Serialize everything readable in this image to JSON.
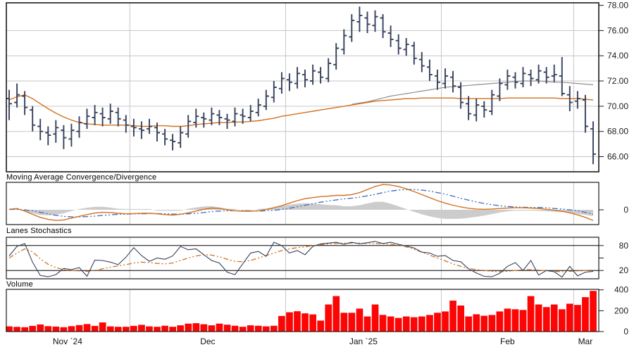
{
  "pane_titles": {
    "macd": "Moving Average Convergence/Divergence",
    "stochastics": "Lanes Stochastics",
    "volume": "Volume"
  },
  "colors": {
    "ohlc_bar": "#36415c",
    "ma_fast": "#d2711e",
    "ma_slow": "#8f8f8f",
    "macd_line": "#d2711e",
    "macd_signal": "#3c6cc0",
    "macd_histogram": "#cccccc",
    "stoch_k": "#36415c",
    "stoch_d": "#d2711e",
    "volume_bar": "#fb0505",
    "grid": "#c6c6c6",
    "border": "#1a1a1a",
    "text": "#1b1b1b",
    "background": "#ffffff"
  },
  "x_axis": {
    "months": [
      {
        "label": "Nov `24",
        "start_index": 0
      },
      {
        "label": "Dec",
        "start_index": 16
      },
      {
        "label": "Jan `25",
        "start_index": 36
      },
      {
        "label": "Feb",
        "start_index": 56
      },
      {
        "label": "Mar",
        "start_index": 73
      }
    ],
    "unit": "trading-day bars"
  },
  "chart_data": [
    {
      "type": "ohlc",
      "panel": "price",
      "title": "",
      "ylim": [
        64.8,
        78.2
      ],
      "yticks": [
        78,
        76,
        74,
        72,
        70,
        68,
        66
      ],
      "ytick_labels": [
        "78.00",
        "76.00",
        "74.00",
        "72.00",
        "70.00",
        "68.00",
        "66.00"
      ],
      "grid": true,
      "ohlc": [
        [
          70.6,
          71.3,
          68.9,
          70.2
        ],
        [
          70.3,
          71.8,
          69.9,
          70.9
        ],
        [
          70.8,
          71.2,
          69.3,
          69.9
        ],
        [
          69.7,
          70.0,
          68.0,
          68.5
        ],
        [
          68.4,
          69.0,
          67.3,
          68.0
        ],
        [
          67.9,
          68.4,
          66.9,
          67.7
        ],
        [
          67.8,
          68.9,
          67.1,
          68.3
        ],
        [
          68.1,
          68.5,
          66.6,
          67.5
        ],
        [
          67.4,
          68.6,
          66.8,
          68.1
        ],
        [
          68.0,
          69.2,
          67.5,
          68.7
        ],
        [
          68.6,
          69.8,
          68.2,
          69.2
        ],
        [
          69.1,
          70.1,
          68.5,
          69.5
        ],
        [
          69.4,
          69.9,
          68.4,
          69.1
        ],
        [
          69.0,
          70.2,
          68.6,
          69.6
        ],
        [
          69.5,
          69.9,
          68.4,
          69.0
        ],
        [
          68.9,
          69.3,
          67.9,
          68.5
        ],
        [
          68.4,
          69.0,
          67.6,
          68.3
        ],
        [
          68.2,
          68.8,
          67.4,
          68.1
        ],
        [
          68.2,
          69.0,
          67.8,
          68.4
        ],
        [
          68.3,
          68.7,
          67.2,
          67.9
        ],
        [
          67.8,
          68.2,
          66.9,
          67.4
        ],
        [
          67.3,
          67.8,
          66.5,
          67.2
        ],
        [
          67.1,
          68.4,
          66.7,
          67.9
        ],
        [
          67.8,
          69.3,
          67.5,
          68.8
        ],
        [
          68.7,
          69.8,
          68.3,
          69.2
        ],
        [
          69.1,
          69.5,
          68.3,
          69.0
        ],
        [
          68.9,
          69.9,
          68.5,
          69.4
        ],
        [
          69.3,
          69.7,
          68.5,
          69.1
        ],
        [
          69.0,
          69.4,
          68.2,
          68.9
        ],
        [
          68.8,
          69.9,
          68.4,
          69.4
        ],
        [
          69.3,
          69.8,
          68.6,
          69.2
        ],
        [
          69.1,
          70.1,
          68.8,
          69.6
        ],
        [
          69.5,
          70.6,
          69.2,
          70.1
        ],
        [
          70.0,
          71.3,
          69.7,
          70.8
        ],
        [
          70.7,
          72.0,
          70.3,
          71.5
        ],
        [
          71.4,
          72.7,
          71.0,
          72.2
        ],
        [
          72.1,
          72.6,
          71.2,
          71.9
        ],
        [
          71.8,
          73.1,
          71.4,
          72.6
        ],
        [
          72.5,
          72.9,
          71.5,
          72.1
        ],
        [
          72.0,
          73.3,
          71.7,
          72.8
        ],
        [
          72.7,
          73.1,
          71.8,
          72.3
        ],
        [
          72.2,
          73.8,
          71.9,
          73.4
        ],
        [
          73.3,
          75.0,
          72.9,
          74.6
        ],
        [
          74.5,
          76.1,
          74.1,
          75.6
        ],
        [
          75.5,
          77.3,
          75.1,
          76.8
        ],
        [
          76.7,
          77.9,
          75.9,
          77.2
        ],
        [
          77.0,
          77.5,
          75.8,
          76.5
        ],
        [
          76.4,
          77.6,
          75.9,
          77.1
        ],
        [
          77.0,
          77.3,
          75.4,
          75.9
        ],
        [
          75.8,
          76.4,
          74.7,
          75.3
        ],
        [
          75.2,
          75.7,
          74.1,
          74.6
        ],
        [
          74.5,
          75.4,
          74.0,
          74.9
        ],
        [
          74.8,
          75.1,
          73.3,
          73.8
        ],
        [
          73.7,
          74.3,
          72.7,
          73.2
        ],
        [
          73.1,
          73.7,
          72.0,
          72.5
        ],
        [
          72.4,
          72.9,
          71.3,
          71.9
        ],
        [
          71.8,
          73.0,
          71.4,
          72.4
        ],
        [
          72.3,
          72.8,
          71.1,
          71.6
        ],
        [
          71.5,
          71.9,
          69.8,
          70.3
        ],
        [
          70.2,
          70.8,
          68.9,
          69.4
        ],
        [
          69.3,
          70.6,
          68.8,
          70.1
        ],
        [
          70.0,
          70.4,
          69.1,
          69.7
        ],
        [
          69.6,
          71.3,
          69.3,
          70.9
        ],
        [
          70.8,
          72.2,
          70.4,
          71.8
        ],
        [
          71.7,
          72.9,
          71.3,
          72.4
        ],
        [
          72.3,
          72.7,
          71.4,
          71.9
        ],
        [
          71.8,
          73.1,
          71.5,
          72.6
        ],
        [
          72.5,
          72.9,
          71.6,
          72.2
        ],
        [
          72.1,
          73.3,
          71.8,
          72.8
        ],
        [
          72.7,
          73.1,
          71.8,
          72.3
        ],
        [
          72.4,
          73.3,
          71.9,
          72.5
        ],
        [
          72.4,
          73.9,
          70.8,
          71.0
        ],
        [
          70.9,
          71.6,
          69.6,
          70.3
        ],
        [
          70.4,
          71.2,
          69.8,
          70.6
        ],
        [
          70.5,
          70.9,
          67.9,
          68.4
        ],
        [
          68.2,
          68.8,
          65.4,
          66.2
        ]
      ],
      "series": [
        {
          "name": "moving-average-fast",
          "style": "solid-orange",
          "values": [
            70.5,
            70.75,
            70.9,
            70.6,
            70.2,
            69.8,
            69.45,
            69.15,
            68.9,
            68.7,
            68.6,
            68.55,
            68.5,
            68.5,
            68.5,
            68.5,
            68.45,
            68.4,
            68.4,
            68.45,
            68.45,
            68.4,
            68.4,
            68.45,
            68.55,
            68.6,
            68.65,
            68.7,
            68.7,
            68.75,
            68.75,
            68.8,
            68.85,
            68.95,
            69.05,
            69.2,
            69.3,
            69.4,
            69.5,
            69.6,
            69.7,
            69.8,
            69.9,
            70.0,
            70.1,
            70.2,
            70.3,
            70.4,
            70.45,
            70.5,
            70.55,
            70.6,
            70.6,
            70.65,
            70.65,
            70.65,
            70.65,
            70.65,
            70.6,
            70.6,
            70.6,
            70.6,
            70.6,
            70.6,
            70.65,
            70.65,
            70.65,
            70.65,
            70.65,
            70.65,
            70.65,
            70.6,
            70.6,
            70.6,
            70.55,
            70.5
          ]
        },
        {
          "name": "moving-average-slow",
          "style": "solid-gray",
          "values": [
            null,
            null,
            null,
            null,
            null,
            null,
            null,
            null,
            null,
            null,
            null,
            null,
            null,
            null,
            null,
            null,
            null,
            null,
            null,
            null,
            null,
            null,
            null,
            null,
            null,
            null,
            null,
            null,
            null,
            null,
            null,
            null,
            null,
            null,
            null,
            null,
            null,
            null,
            null,
            null,
            null,
            null,
            null,
            null,
            70.15,
            70.25,
            70.35,
            70.5,
            70.65,
            70.8,
            70.9,
            71.0,
            71.1,
            71.2,
            71.3,
            71.4,
            71.5,
            71.55,
            71.6,
            71.65,
            71.7,
            71.75,
            71.8,
            71.85,
            71.9,
            71.95,
            72.0,
            72.0,
            72.0,
            71.95,
            71.9,
            71.9,
            71.85,
            71.8,
            71.75,
            71.7
          ]
        }
      ]
    },
    {
      "type": "line",
      "panel": "macd",
      "title": "Moving Average Convergence/Divergence",
      "ylim": [
        -0.585,
        1.085
      ],
      "yticks": [
        0
      ],
      "ytick_labels": [
        "0"
      ],
      "histogram_is_macd_minus_signal": true,
      "series": [
        {
          "name": "macd-line",
          "style": "solid-orange",
          "values": [
            0.02,
            0.05,
            -0.05,
            -0.18,
            -0.3,
            -0.38,
            -0.42,
            -0.4,
            -0.33,
            -0.26,
            -0.19,
            -0.13,
            -0.1,
            -0.11,
            -0.14,
            -0.16,
            -0.15,
            -0.14,
            -0.14,
            -0.16,
            -0.19,
            -0.21,
            -0.18,
            -0.12,
            -0.05,
            0.02,
            0.07,
            0.05,
            0.0,
            -0.04,
            -0.06,
            -0.06,
            -0.04,
            0.01,
            0.08,
            0.16,
            0.26,
            0.36,
            0.44,
            0.48,
            0.52,
            0.54,
            0.57,
            0.57,
            0.6,
            0.68,
            0.8,
            0.92,
            1.0,
            0.98,
            0.92,
            0.83,
            0.72,
            0.6,
            0.48,
            0.36,
            0.26,
            0.18,
            0.11,
            0.06,
            0.03,
            0.02,
            0.03,
            0.05,
            0.07,
            0.08,
            0.08,
            0.07,
            0.05,
            0.02,
            -0.02,
            -0.06,
            -0.12,
            -0.2,
            -0.3,
            -0.42
          ]
        },
        {
          "name": "macd-signal-line",
          "style": "dash-dot-blue",
          "values": [
            0.01,
            0.02,
            0.0,
            -0.04,
            -0.1,
            -0.16,
            -0.22,
            -0.26,
            -0.28,
            -0.28,
            -0.27,
            -0.25,
            -0.22,
            -0.2,
            -0.18,
            -0.17,
            -0.16,
            -0.16,
            -0.15,
            -0.15,
            -0.16,
            -0.17,
            -0.17,
            -0.16,
            -0.14,
            -0.11,
            -0.07,
            -0.05,
            -0.04,
            -0.04,
            -0.04,
            -0.05,
            -0.05,
            -0.04,
            -0.02,
            0.01,
            0.06,
            0.12,
            0.18,
            0.24,
            0.3,
            0.35,
            0.39,
            0.43,
            0.46,
            0.5,
            0.55,
            0.61,
            0.68,
            0.74,
            0.78,
            0.8,
            0.8,
            0.78,
            0.74,
            0.68,
            0.62,
            0.54,
            0.46,
            0.38,
            0.31,
            0.25,
            0.2,
            0.16,
            0.13,
            0.11,
            0.1,
            0.09,
            0.09,
            0.08,
            0.05,
            0.03,
            0.0,
            -0.04,
            -0.1,
            -0.17
          ]
        }
      ]
    },
    {
      "type": "line",
      "panel": "stochastics",
      "title": "Lanes Stochastics",
      "ylim": [
        0,
        100
      ],
      "ref_lines": [
        80,
        20
      ],
      "yticks": [
        80,
        50,
        20
      ],
      "ytick_labels": [
        "80",
        "",
        "20"
      ],
      "series": [
        {
          "name": "stochastic-k",
          "style": "solid-navy",
          "values": [
            55,
            78,
            85,
            40,
            8,
            5,
            10,
            25,
            22,
            27,
            6,
            45,
            44,
            40,
            34,
            52,
            75,
            56,
            42,
            50,
            47,
            55,
            78,
            70,
            72,
            58,
            44,
            38,
            16,
            10,
            36,
            62,
            66,
            54,
            88,
            80,
            62,
            68,
            58,
            78,
            84,
            86,
            88,
            83,
            88,
            84,
            87,
            90,
            85,
            88,
            83,
            79,
            74,
            64,
            62,
            54,
            56,
            44,
            41,
            24,
            14,
            6,
            5,
            13,
            30,
            39,
            20,
            44,
            9,
            20,
            17,
            4,
            30,
            7,
            16,
            18
          ]
        },
        {
          "name": "stochastic-d",
          "style": "dash-dot-orange",
          "values": [
            50,
            62,
            72,
            65,
            48,
            35,
            27,
            22,
            20,
            19,
            18,
            20,
            24,
            28,
            31,
            34,
            38,
            40,
            39,
            37,
            36,
            38,
            44,
            50,
            55,
            58,
            57,
            53,
            47,
            42,
            41,
            44,
            50,
            56,
            62,
            68,
            72,
            75,
            77,
            80,
            82,
            84,
            85,
            86,
            86,
            86,
            85,
            85,
            84,
            83,
            81,
            77,
            71,
            64,
            57,
            50,
            43,
            36,
            30,
            25,
            22,
            20,
            18,
            17,
            18,
            20,
            22,
            22,
            21,
            19,
            18,
            17,
            18,
            19,
            20,
            21
          ]
        }
      ]
    },
    {
      "type": "bar",
      "panel": "volume",
      "title": "Volume",
      "ylim": [
        0,
        405
      ],
      "yticks": [
        400,
        200,
        0
      ],
      "ytick_labels": [
        "400",
        "200",
        "0"
      ],
      "values": [
        50,
        45,
        42,
        55,
        68,
        52,
        48,
        42,
        52,
        62,
        72,
        55,
        88,
        50,
        46,
        46,
        55,
        65,
        50,
        46,
        56,
        46,
        60,
        76,
        80,
        70,
        60,
        76,
        66,
        56,
        46,
        60,
        56,
        50,
        56,
        150,
        185,
        195,
        175,
        165,
        105,
        260,
        340,
        180,
        180,
        220,
        145,
        260,
        160,
        145,
        131,
        145,
        138,
        145,
        159,
        180,
        193,
        297,
        250,
        145,
        166,
        152,
        159,
        193,
        220,
        214,
        207,
        340,
        260,
        235,
        260,
        214,
        267,
        255,
        330,
        390
      ]
    }
  ]
}
